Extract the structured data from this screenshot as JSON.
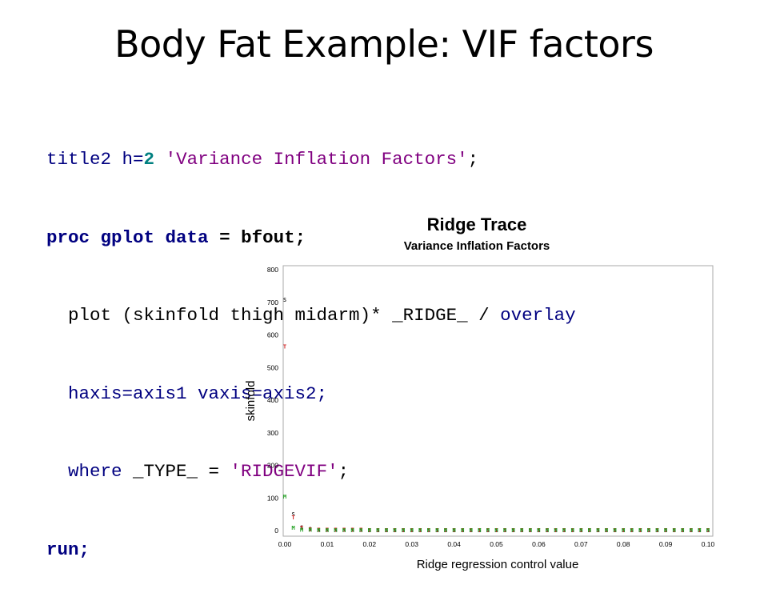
{
  "slide": {
    "title": "Body Fat Example: VIF factors"
  },
  "code": {
    "l1": {
      "a": "title2 h=",
      "b": "2",
      "c": " ",
      "d": "'Variance Inflation Factors'",
      "e": ";"
    },
    "l2": {
      "a": "proc gplot",
      "b": " ",
      "c": "data",
      "d": " = bfout;"
    },
    "l3": {
      "a": "  plot (skinfold thigh midarm)* _RIDGE_ / ",
      "b": "overlay"
    },
    "l4": {
      "a": "  haxis=axis1 ",
      "b": "vaxis=axis2;"
    },
    "l5": {
      "a": "  where",
      "b": " _TYPE_ = ",
      "c": "'RIDGEVIF'",
      "d": ";"
    },
    "l6": {
      "a": "run;"
    }
  },
  "chart_data": {
    "type": "scatter",
    "title": "Ridge Trace",
    "subtitle": "Variance Inflation Factors",
    "xlabel": "Ridge regression control value",
    "ylabel": "skinfold",
    "xlim": [
      0,
      0.1
    ],
    "ylim": [
      0,
      800
    ],
    "xticks": [
      "0.00",
      "0.01",
      "0.02",
      "0.03",
      "0.04",
      "0.05",
      "0.06",
      "0.07",
      "0.08",
      "0.09",
      "0.10"
    ],
    "yticks": [
      "0",
      "100",
      "200",
      "300",
      "400",
      "500",
      "600",
      "700",
      "800"
    ],
    "grid": false,
    "x": [
      0,
      0.002,
      0.004,
      0.006,
      0.008,
      0.01,
      0.012,
      0.014,
      0.016,
      0.018,
      0.02,
      0.022,
      0.024,
      0.026,
      0.028,
      0.03,
      0.032,
      0.034,
      0.036,
      0.038,
      0.04,
      0.042,
      0.044,
      0.046,
      0.048,
      0.05,
      0.052,
      0.054,
      0.056,
      0.058,
      0.06,
      0.062,
      0.064,
      0.066,
      0.068,
      0.07,
      0.072,
      0.074,
      0.076,
      0.078,
      0.08,
      0.082,
      0.084,
      0.086,
      0.088,
      0.09,
      0.092,
      0.094,
      0.096,
      0.098,
      0.1
    ],
    "series": [
      {
        "marker": "S",
        "color": "#333333",
        "values": [
          708,
          50,
          10,
          5,
          3,
          2,
          2,
          2,
          2,
          2,
          1,
          1,
          1,
          1,
          1,
          1,
          1,
          1,
          1,
          1,
          1,
          1,
          1,
          1,
          1,
          1,
          1,
          1,
          1,
          1,
          1,
          1,
          1,
          1,
          1,
          1,
          1,
          1,
          1,
          1,
          1,
          1,
          1,
          1,
          1,
          1,
          1,
          1,
          1,
          1,
          1
        ]
      },
      {
        "marker": "T",
        "color": "#d02020",
        "values": [
          564,
          40,
          9,
          4,
          3,
          2,
          2,
          2,
          2,
          2,
          1,
          1,
          1,
          1,
          1,
          1,
          1,
          1,
          1,
          1,
          1,
          1,
          1,
          1,
          1,
          1,
          1,
          1,
          1,
          1,
          1,
          1,
          1,
          1,
          1,
          1,
          1,
          1,
          1,
          1,
          1,
          1,
          1,
          1,
          1,
          1,
          1,
          1,
          1,
          1,
          1
        ]
      },
      {
        "marker": "M",
        "color": "#20a020",
        "values": [
          104,
          8,
          3,
          2,
          1,
          1,
          1,
          1,
          1,
          1,
          1,
          1,
          1,
          1,
          1,
          1,
          1,
          1,
          1,
          1,
          1,
          1,
          1,
          1,
          1,
          1,
          1,
          1,
          1,
          1,
          1,
          1,
          1,
          1,
          1,
          1,
          1,
          1,
          1,
          1,
          1,
          1,
          1,
          1,
          1,
          1,
          1,
          1,
          1,
          1,
          1
        ]
      }
    ]
  }
}
